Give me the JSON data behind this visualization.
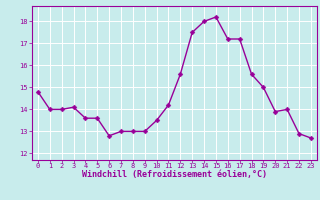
{
  "x": [
    0,
    1,
    2,
    3,
    4,
    5,
    6,
    7,
    8,
    9,
    10,
    11,
    12,
    13,
    14,
    15,
    16,
    17,
    18,
    19,
    20,
    21,
    22,
    23
  ],
  "y": [
    14.8,
    14.0,
    14.0,
    14.1,
    13.6,
    13.6,
    12.8,
    13.0,
    13.0,
    13.0,
    13.5,
    14.2,
    15.6,
    17.5,
    18.0,
    18.2,
    17.2,
    17.2,
    15.6,
    15.0,
    13.9,
    14.0,
    12.9,
    12.7
  ],
  "line_color": "#990099",
  "marker_color": "#990099",
  "bg_color": "#c8ecec",
  "grid_color": "#ffffff",
  "xlabel": "Windchill (Refroidissement éolien,°C)",
  "xlabel_color": "#990099",
  "tick_color": "#990099",
  "spine_color": "#990099",
  "ylim": [
    11.7,
    18.7
  ],
  "xlim": [
    -0.5,
    23.5
  ],
  "yticks": [
    12,
    13,
    14,
    15,
    16,
    17,
    18
  ],
  "xticks": [
    0,
    1,
    2,
    3,
    4,
    5,
    6,
    7,
    8,
    9,
    10,
    11,
    12,
    13,
    14,
    15,
    16,
    17,
    18,
    19,
    20,
    21,
    22,
    23
  ],
  "marker_size": 2.5,
  "line_width": 1.0,
  "tick_fontsize": 5.0,
  "xlabel_fontsize": 6.0
}
